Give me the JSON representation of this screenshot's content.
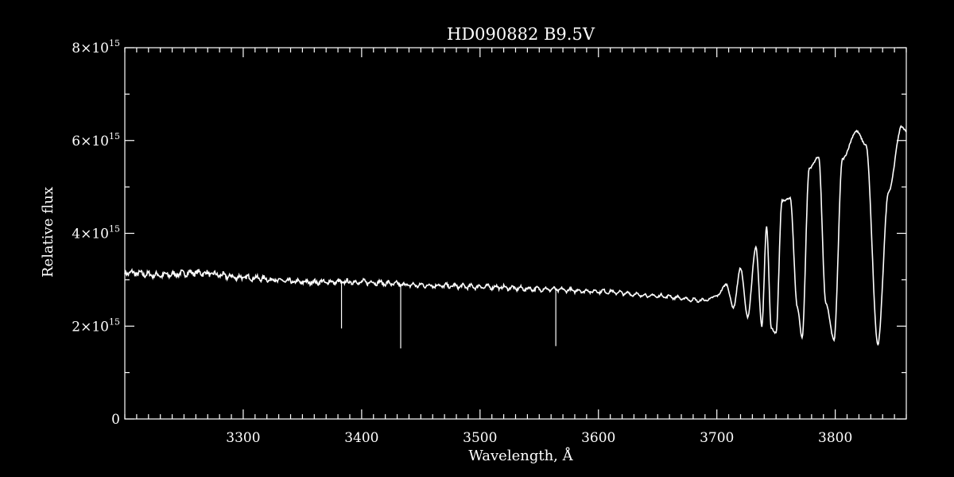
{
  "chart_data": {
    "type": "line",
    "title": "HD090882   B9.5V",
    "xlabel": "Wavelength, Å",
    "ylabel": "Relative flux",
    "xlim": [
      3200,
      3860
    ],
    "ylim": [
      0,
      8000000000000000.0
    ],
    "x_ticks": [
      3300,
      3400,
      3500,
      3600,
      3700,
      3800
    ],
    "x_tick_labels": [
      "3300",
      "3400",
      "3500",
      "3600",
      "3700",
      "3800"
    ],
    "y_ticks": [
      {
        "value": 0,
        "mantissa": "0",
        "exp": ""
      },
      {
        "value": 2000000000000000.0,
        "mantissa": "2×10",
        "exp": "15"
      },
      {
        "value": 4000000000000000.0,
        "mantissa": "4×10",
        "exp": "15"
      },
      {
        "value": 6000000000000000.0,
        "mantissa": "6×10",
        "exp": "15"
      },
      {
        "value": 8000000000000000.0,
        "mantissa": "8×10",
        "exp": "15"
      }
    ],
    "grid": false,
    "line_color": "#ffffff",
    "background": "#000000",
    "series": [
      {
        "x": [
          3200,
          3230,
          3260,
          3300,
          3350,
          3400,
          3450,
          3500,
          3550,
          3600,
          3650,
          3690,
          3700,
          3708,
          3714,
          3720,
          3726,
          3733,
          3738,
          3742,
          3746,
          3750,
          3755,
          3762,
          3768,
          3772,
          3778,
          3786,
          3792,
          3799,
          3806,
          3818,
          3826,
          3836,
          3845,
          3856,
          3860
        ],
        "y": [
          3150000000000000.0,
          3100000000000000.0,
          3150000000000000.0,
          3050000000000000.0,
          2950000000000000.0,
          2950000000000000.0,
          2880000000000000.0,
          2850000000000000.0,
          2800000000000000.0,
          2750000000000000.0,
          2650000000000000.0,
          2550000000000000.0,
          2650000000000000.0,
          2900000000000000.0,
          2400000000000000.0,
          3250000000000000.0,
          2200000000000000.0,
          3700000000000000.0,
          2000000000000000.0,
          4150000000000000.0,
          1950000000000000.0,
          1850000000000000.0,
          4700000000000000.0,
          4750000000000000.0,
          2400000000000000.0,
          1750000000000000.0,
          5400000000000000.0,
          5650000000000000.0,
          2500000000000000.0,
          1700000000000000.0,
          5600000000000000.0,
          6200000000000000.0,
          5900000000000000.0,
          1600000000000000.0,
          4900000000000000.0,
          6300000000000000.0,
          6200000000000000.0
        ]
      }
    ],
    "absorption_lines": [
      {
        "x": 3383,
        "y": 1950000000000000.0
      },
      {
        "x": 3433,
        "y": 1520000000000000.0
      },
      {
        "x": 3564,
        "y": 1570000000000000.0
      }
    ]
  }
}
